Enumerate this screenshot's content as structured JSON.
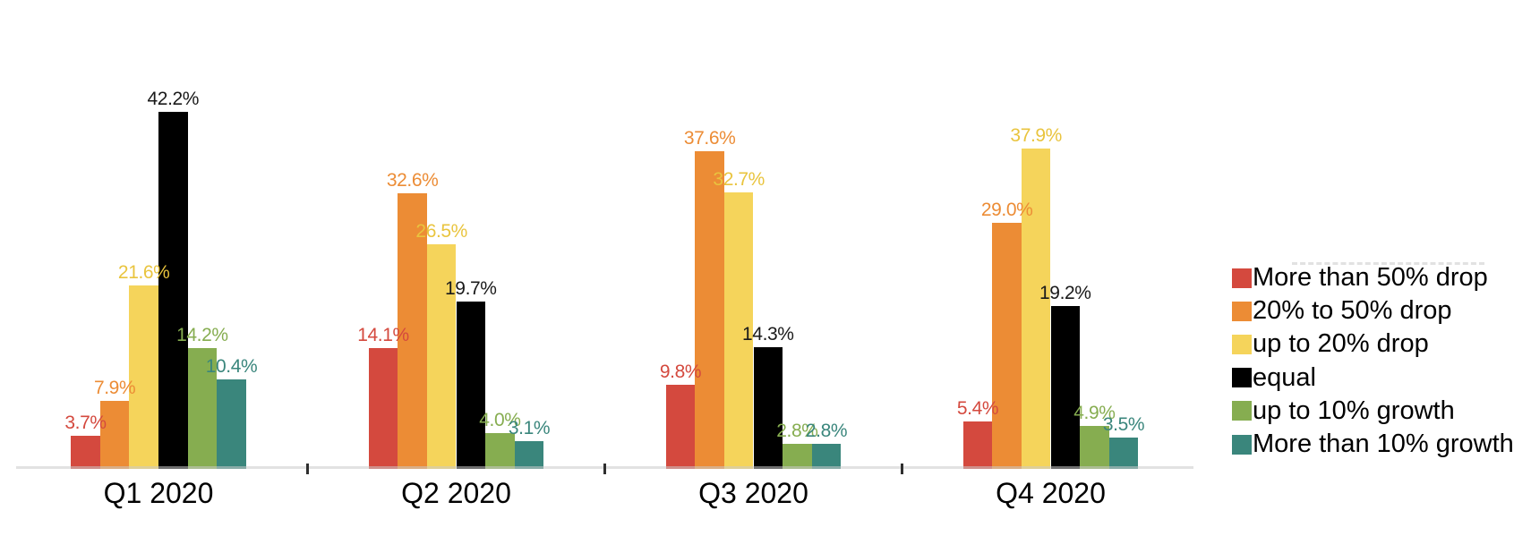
{
  "chart_data": {
    "type": "bar",
    "title": "",
    "xlabel": "",
    "ylabel": "",
    "categories": [
      "Q1 2020",
      "Q2 2020",
      "Q3 2020",
      "Q4 2020"
    ],
    "series": [
      {
        "name": "More than 50% drop",
        "color": "#d4493e",
        "values": [
          3.7,
          14.1,
          9.8,
          5.4
        ]
      },
      {
        "name": "20% to 50% drop",
        "color": "#ec8c35",
        "values": [
          7.9,
          32.6,
          37.6,
          29.0
        ]
      },
      {
        "name": "up to 20% drop",
        "color": "#f5d45b",
        "label_color": "#e9c43e",
        "values": [
          21.6,
          26.5,
          32.7,
          37.9
        ]
      },
      {
        "name": "equal",
        "color": "#000000",
        "label_color": "#1a1a1a",
        "values": [
          42.2,
          19.7,
          14.3,
          19.2
        ]
      },
      {
        "name": "up to 10% growth",
        "color": "#86ad50",
        "values": [
          14.2,
          4.0,
          2.8,
          4.9
        ]
      },
      {
        "name": "More than 10% growth",
        "color": "#3a867c",
        "values": [
          10.4,
          3.1,
          2.8,
          3.5
        ]
      }
    ],
    "value_suffix": "%",
    "value_decimals": 1,
    "ylim": [
      0,
      45
    ],
    "grid": false,
    "axis_color": "#cbcbcb",
    "tick_color": "#2f2f2f",
    "legend_position": "right",
    "data_labels": "above bars, colored same as series"
  }
}
